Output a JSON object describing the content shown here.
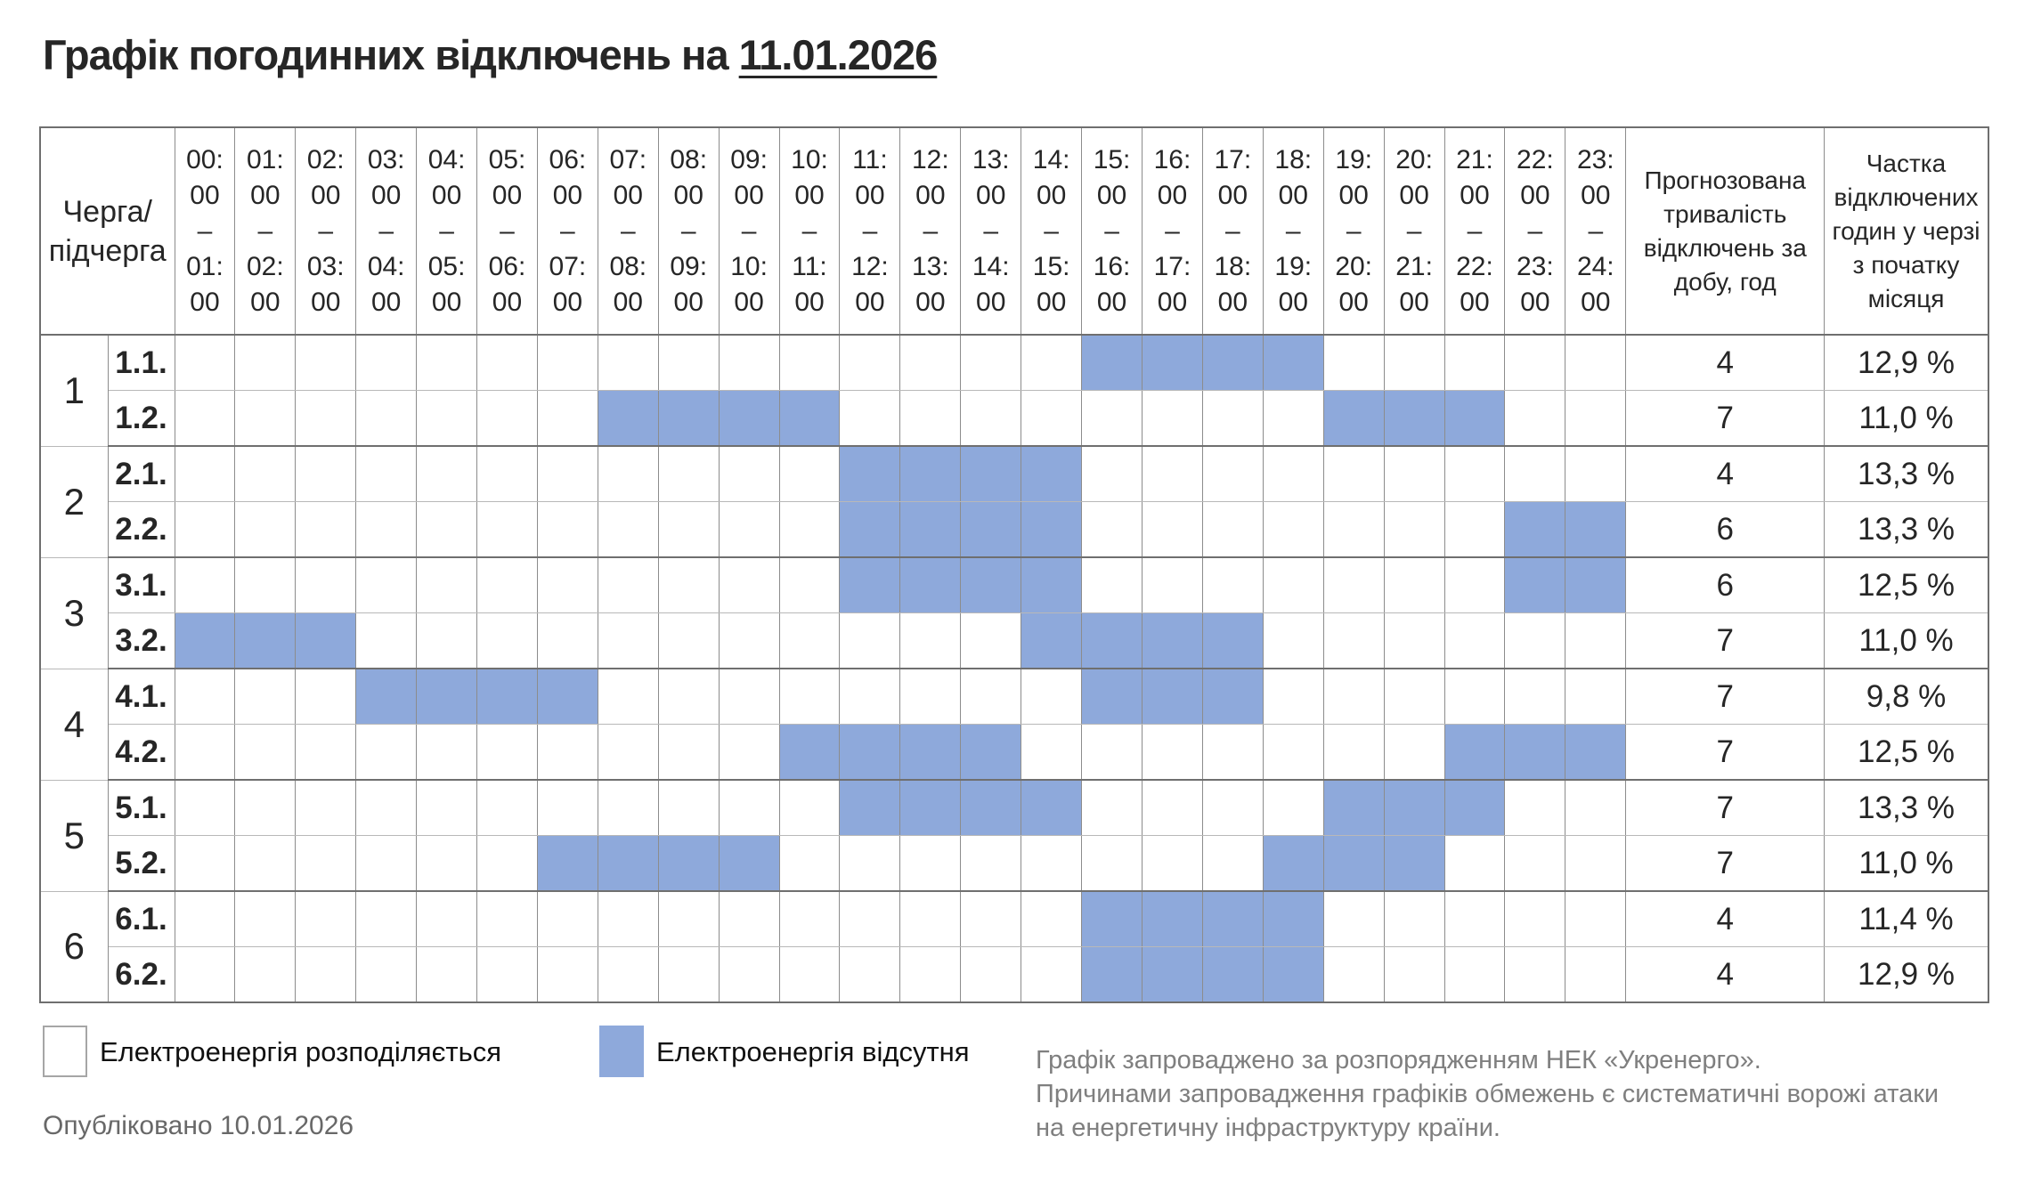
{
  "title": {
    "prefix": "Графік погодинних відключень на",
    "date": "11.01.2026"
  },
  "schedule": {
    "corner_lines": [
      "Черга/",
      "підчерга"
    ],
    "range_dash": "–",
    "time_slots": [
      {
        "start": "00:00",
        "end": "01:00"
      },
      {
        "start": "01:00",
        "end": "02:00"
      },
      {
        "start": "02:00",
        "end": "03:00"
      },
      {
        "start": "03:00",
        "end": "04:00"
      },
      {
        "start": "04:00",
        "end": "05:00"
      },
      {
        "start": "05:00",
        "end": "06:00"
      },
      {
        "start": "06:00",
        "end": "07:00"
      },
      {
        "start": "07:00",
        "end": "08:00"
      },
      {
        "start": "08:00",
        "end": "09:00"
      },
      {
        "start": "09:00",
        "end": "10:00"
      },
      {
        "start": "10:00",
        "end": "11:00"
      },
      {
        "start": "11:00",
        "end": "12:00"
      },
      {
        "start": "12:00",
        "end": "13:00"
      },
      {
        "start": "13:00",
        "end": "14:00"
      },
      {
        "start": "14:00",
        "end": "15:00"
      },
      {
        "start": "15:00",
        "end": "16:00"
      },
      {
        "start": "16:00",
        "end": "17:00"
      },
      {
        "start": "17:00",
        "end": "18:00"
      },
      {
        "start": "18:00",
        "end": "19:00"
      },
      {
        "start": "19:00",
        "end": "20:00"
      },
      {
        "start": "20:00",
        "end": "21:00"
      },
      {
        "start": "21:00",
        "end": "22:00"
      },
      {
        "start": "22:00",
        "end": "23:00"
      },
      {
        "start": "23:00",
        "end": "24:00"
      }
    ],
    "duration_header": "Прогнозована тривалість відключень за добу, год",
    "share_header": "Частка відключених годин у черзі з початку місяця",
    "queues": [
      {
        "queue": "1",
        "rows": [
          {
            "label": "1.1.",
            "outage_hours": [
              15,
              16,
              17,
              18
            ],
            "duration": "4",
            "share": "12,9 %"
          },
          {
            "label": "1.2.",
            "outage_hours": [
              7,
              8,
              9,
              10,
              19,
              20,
              21
            ],
            "duration": "7",
            "share": "11,0 %"
          }
        ]
      },
      {
        "queue": "2",
        "rows": [
          {
            "label": "2.1.",
            "outage_hours": [
              11,
              12,
              13,
              14
            ],
            "duration": "4",
            "share": "13,3 %"
          },
          {
            "label": "2.2.",
            "outage_hours": [
              11,
              12,
              13,
              14,
              22,
              23
            ],
            "duration": "6",
            "share": "13,3 %"
          }
        ]
      },
      {
        "queue": "3",
        "rows": [
          {
            "label": "3.1.",
            "outage_hours": [
              11,
              12,
              13,
              14,
              22,
              23
            ],
            "duration": "6",
            "share": "12,5 %"
          },
          {
            "label": "3.2.",
            "outage_hours": [
              0,
              1,
              2,
              14,
              15,
              16,
              17
            ],
            "duration": "7",
            "share": "11,0 %"
          }
        ]
      },
      {
        "queue": "4",
        "rows": [
          {
            "label": "4.1.",
            "outage_hours": [
              3,
              4,
              5,
              6,
              15,
              16,
              17
            ],
            "duration": "7",
            "share": "9,8 %"
          },
          {
            "label": "4.2.",
            "outage_hours": [
              10,
              11,
              12,
              13,
              21,
              22,
              23
            ],
            "duration": "7",
            "share": "12,5 %"
          }
        ]
      },
      {
        "queue": "5",
        "rows": [
          {
            "label": "5.1.",
            "outage_hours": [
              11,
              12,
              13,
              14,
              19,
              20,
              21
            ],
            "duration": "7",
            "share": "13,3 %"
          },
          {
            "label": "5.2.",
            "outage_hours": [
              6,
              7,
              8,
              9,
              18,
              19,
              20
            ],
            "duration": "7",
            "share": "11,0 %"
          }
        ]
      },
      {
        "queue": "6",
        "rows": [
          {
            "label": "6.1.",
            "outage_hours": [
              15,
              16,
              17,
              18
            ],
            "duration": "4",
            "share": "11,4 %"
          },
          {
            "label": "6.2.",
            "outage_hours": [
              15,
              16,
              17,
              18
            ],
            "duration": "4",
            "share": "12,9 %"
          }
        ]
      }
    ]
  },
  "legend": {
    "available": {
      "label": "Електроенергія розподіляється",
      "color": "#ffffff"
    },
    "absent": {
      "label": "Електроенергія відсутня",
      "color": "#8ea9db"
    }
  },
  "published": "Опубліковано 10.01.2026",
  "notes": [
    "Графік запроваджено за розпорядженням НЕК «Укренерго».",
    "Причинами запровадження графіків обмежень є систематичні ворожі атаки",
    "на енергетичну інфраструктуру країни."
  ],
  "colors": {
    "outage_fill": "#8ea9db",
    "grid_light": "#b8b8b8",
    "grid_dark": "#6f6f6f"
  }
}
